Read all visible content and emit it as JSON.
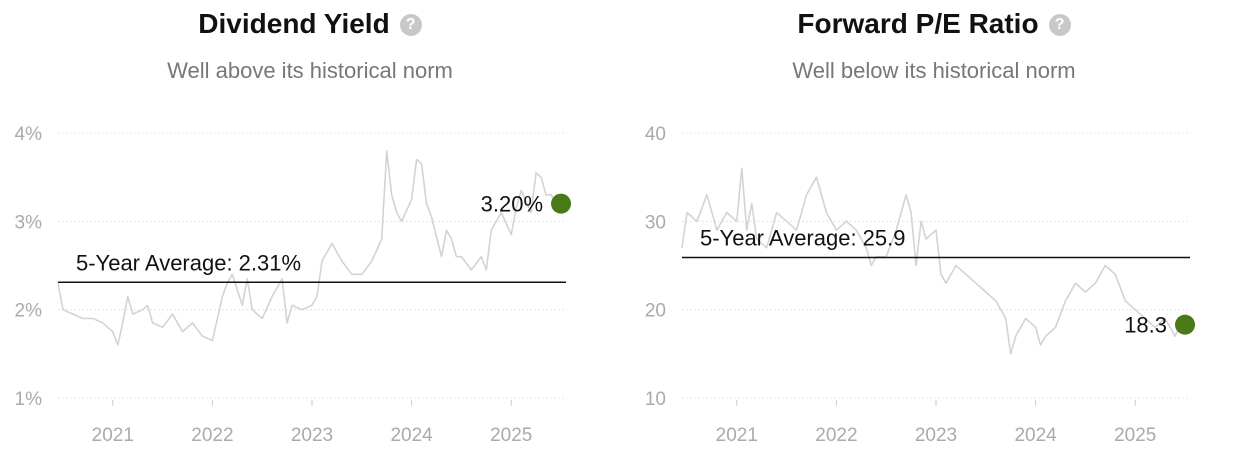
{
  "charts": [
    {
      "title": "Dividend Yield",
      "subtitle": "Well above its historical norm",
      "help_icon": "question-circle-icon",
      "chart_data": {
        "type": "line",
        "ylim": [
          1,
          4
        ],
        "yticks": [
          "1%",
          "2%",
          "3%",
          "4%"
        ],
        "ytick_values": [
          1,
          2,
          3,
          4
        ],
        "xlim": [
          2020.45,
          2025.55
        ],
        "xticks": [
          "2021",
          "2022",
          "2023",
          "2024",
          "2025"
        ],
        "xtick_values": [
          2021,
          2022,
          2023,
          2024,
          2025
        ],
        "grid": true,
        "series_color": "#d3d3d3",
        "series": [
          {
            "x": [
              2020.45,
              2020.5,
              2020.6,
              2020.7,
              2020.8,
              2020.9,
              2021.0,
              2021.05,
              2021.1,
              2021.15,
              2021.2,
              2021.3,
              2021.35,
              2021.4,
              2021.5,
              2021.6,
              2021.7,
              2021.8,
              2021.9,
              2022.0,
              2022.05,
              2022.1,
              2022.15,
              2022.2,
              2022.3,
              2022.35,
              2022.4,
              2022.5,
              2022.6,
              2022.7,
              2022.75,
              2022.8,
              2022.9,
              2023.0,
              2023.05,
              2023.1,
              2023.2,
              2023.3,
              2023.4,
              2023.5,
              2023.6,
              2023.7,
              2023.75,
              2023.8,
              2023.85,
              2023.9,
              2024.0,
              2024.05,
              2024.1,
              2024.15,
              2024.2,
              2024.3,
              2024.35,
              2024.4,
              2024.45,
              2024.5,
              2024.6,
              2024.7,
              2024.75,
              2024.8,
              2024.9,
              2025.0,
              2025.05,
              2025.1,
              2025.2,
              2025.25,
              2025.3,
              2025.35,
              2025.4,
              2025.45
            ],
            "y": [
              2.3,
              2.0,
              1.95,
              1.9,
              1.9,
              1.85,
              1.75,
              1.6,
              1.85,
              2.15,
              1.95,
              2.0,
              2.05,
              1.85,
              1.8,
              1.95,
              1.75,
              1.85,
              1.7,
              1.65,
              1.9,
              2.15,
              2.3,
              2.4,
              2.05,
              2.35,
              2.0,
              1.9,
              2.15,
              2.35,
              1.85,
              2.05,
              2.0,
              2.05,
              2.15,
              2.55,
              2.75,
              2.55,
              2.4,
              2.4,
              2.55,
              2.8,
              3.8,
              3.3,
              3.1,
              3.0,
              3.25,
              3.7,
              3.65,
              3.2,
              3.05,
              2.6,
              2.9,
              2.8,
              2.6,
              2.6,
              2.45,
              2.6,
              2.45,
              2.9,
              3.1,
              2.85,
              3.15,
              3.35,
              3.1,
              3.55,
              3.5,
              3.3,
              3.3,
              3.2
            ]
          }
        ],
        "average": {
          "label": "5-Year Average: 2.31%",
          "value": 2.31
        },
        "current": {
          "label": "3.20%",
          "value": 3.2,
          "x": 2025.5
        },
        "marker_color": "#4a7a17"
      }
    },
    {
      "title": "Forward P/E Ratio",
      "subtitle": "Well below its historical norm",
      "help_icon": "question-circle-icon",
      "chart_data": {
        "type": "line",
        "ylim": [
          10,
          40
        ],
        "yticks": [
          "10",
          "20",
          "30",
          "40"
        ],
        "ytick_values": [
          10,
          20,
          30,
          40
        ],
        "xlim": [
          2020.45,
          2025.55
        ],
        "xticks": [
          "2021",
          "2022",
          "2023",
          "2024",
          "2025"
        ],
        "xtick_values": [
          2021,
          2022,
          2023,
          2024,
          2025
        ],
        "grid": true,
        "series_color": "#d3d3d3",
        "series": [
          {
            "x": [
              2020.45,
              2020.5,
              2020.6,
              2020.7,
              2020.8,
              2020.9,
              2021.0,
              2021.05,
              2021.1,
              2021.15,
              2021.2,
              2021.3,
              2021.4,
              2021.5,
              2021.6,
              2021.7,
              2021.75,
              2021.8,
              2021.9,
              2022.0,
              2022.1,
              2022.2,
              2022.3,
              2022.35,
              2022.4,
              2022.5,
              2022.6,
              2022.7,
              2022.75,
              2022.8,
              2022.85,
              2022.9,
              2023.0,
              2023.05,
              2023.1,
              2023.2,
              2023.3,
              2023.4,
              2023.5,
              2023.6,
              2023.7,
              2023.75,
              2023.8,
              2023.9,
              2024.0,
              2024.05,
              2024.1,
              2024.2,
              2024.3,
              2024.4,
              2024.5,
              2024.6,
              2024.7,
              2024.8,
              2024.9,
              2025.0,
              2025.1,
              2025.2,
              2025.3,
              2025.4,
              2025.45
            ],
            "y": [
              27,
              31,
              30,
              33,
              29,
              31,
              30,
              36,
              29,
              32,
              28,
              27,
              31,
              30,
              29,
              33,
              34,
              35,
              31,
              29,
              30,
              29,
              27,
              25,
              26,
              26,
              29,
              33,
              31,
              25,
              30,
              28,
              29,
              24,
              23,
              25,
              24,
              23,
              22,
              21,
              19,
              15,
              17,
              19,
              18,
              16,
              17,
              18,
              21,
              23,
              22,
              23,
              25,
              24,
              21,
              20,
              19,
              18,
              19,
              17,
              18.3
            ]
          }
        ],
        "average": {
          "label": "5-Year Average: 25.9",
          "value": 25.9
        },
        "current": {
          "label": "18.3",
          "value": 18.3,
          "x": 2025.5
        },
        "marker_color": "#4a7a17"
      }
    }
  ]
}
